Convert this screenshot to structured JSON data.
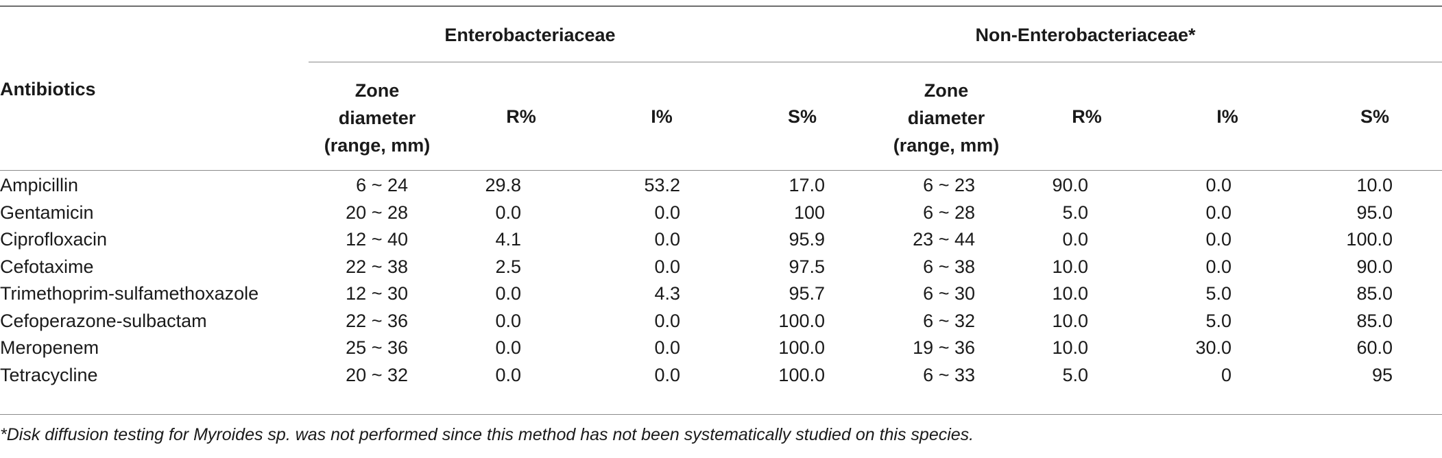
{
  "table": {
    "group_headers": {
      "entero": "Enterobacteriaceae",
      "non_entero": "Non-Enterobacteriaceae*"
    },
    "row_header": "Antibiotics",
    "subheaders": {
      "zone": [
        "Zone",
        "diameter",
        "(range, mm)"
      ],
      "r": "R%",
      "i": "I%",
      "s": "S%"
    },
    "rows": [
      {
        "name": "Ampicillin",
        "ez": "6 ~ 24",
        "er": "29.8",
        "ei": "53.2",
        "es": "17.0",
        "nz": "6 ~ 23",
        "nr": "90.0",
        "ni": "0.0",
        "ns": "10.0"
      },
      {
        "name": "Gentamicin",
        "ez": "20 ~ 28",
        "er": "0.0",
        "ei": "0.0",
        "es": "100",
        "nz": "6 ~ 28",
        "nr": "5.0",
        "ni": "0.0",
        "ns": "95.0"
      },
      {
        "name": "Ciprofloxacin",
        "ez": "12 ~ 40",
        "er": "4.1",
        "ei": "0.0",
        "es": "95.9",
        "nz": "23 ~ 44",
        "nr": "0.0",
        "ni": "0.0",
        "ns": "100.0"
      },
      {
        "name": "Cefotaxime",
        "ez": "22 ~ 38",
        "er": "2.5",
        "ei": "0.0",
        "es": "97.5",
        "nz": "6 ~ 38",
        "nr": "10.0",
        "ni": "0.0",
        "ns": "90.0"
      },
      {
        "name": "Trimethoprim-sulfamethoxazole",
        "ez": "12 ~ 30",
        "er": "0.0",
        "ei": "4.3",
        "es": "95.7",
        "nz": "6 ~ 30",
        "nr": "10.0",
        "ni": "5.0",
        "ns": "85.0"
      },
      {
        "name": "Cefoperazone-sulbactam",
        "ez": "22 ~ 36",
        "er": "0.0",
        "ei": "0.0",
        "es": "100.0",
        "nz": "6 ~ 32",
        "nr": "10.0",
        "ni": "5.0",
        "ns": "85.0"
      },
      {
        "name": "Meropenem",
        "ez": "25 ~ 36",
        "er": "0.0",
        "ei": "0.0",
        "es": "100.0",
        "nz": "19 ~ 36",
        "nr": "10.0",
        "ni": "30.0",
        "ns": "60.0"
      },
      {
        "name": "Tetracycline",
        "ez": "20 ~ 32",
        "er": "0.0",
        "ei": "0.0",
        "es": "100.0",
        "nz": "6 ~ 33",
        "nr": "5.0",
        "ni": "0",
        "ns": "95"
      }
    ],
    "footnote": "*Disk diffusion testing for Myroides sp. was not performed since this method has not been systematically studied on this species."
  }
}
